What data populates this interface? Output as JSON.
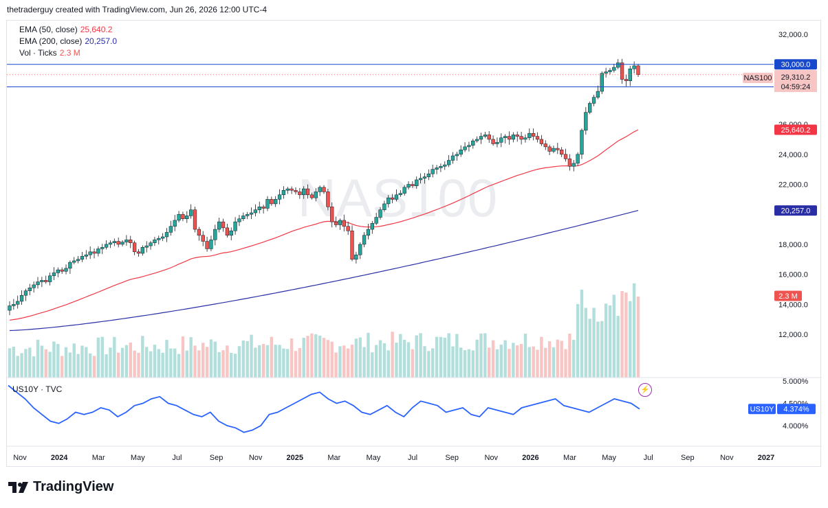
{
  "header": {
    "text": "thetraderguy created with TradingView.com, Jun 26, 2026 12:00 UTC-4"
  },
  "legend": {
    "ema50_label": "EMA (50, close)",
    "ema50_value": "25,640.2",
    "ema200_label": "EMA (200, close)",
    "ema200_value": "20,257.0",
    "vol_label": "Vol · Ticks",
    "vol_value": "2.3 M"
  },
  "watermark": "NAS100",
  "colors": {
    "up": "#26a69a",
    "down": "#ef5350",
    "ema50": "#f23645",
    "ema200": "#2a2ea5",
    "hline": "#1848cc",
    "us10y": "#2962ff",
    "vol_up": "#b2dfdb",
    "vol_down": "#f7c5c3"
  },
  "price_axis": {
    "ticks": [
      "32,000.0",
      "26,000.0",
      "24,000.0",
      "22,000.0",
      "18,000.0",
      "16,000.0",
      "14,000.0",
      "12,000.0"
    ]
  },
  "price_tags": {
    "hline_upper": "30,000.0",
    "hline_lower": "28,500.0",
    "symbol": "NAS100",
    "last_price": "29,310.2",
    "countdown": "04:59:24",
    "ema50": "25,640.2",
    "ema200": "20,257.0",
    "volume": "2.3 M"
  },
  "sub_pane": {
    "label": "US10Y · TVC",
    "ticks": [
      "5.000%",
      "4.500%",
      "4.000%"
    ],
    "tag_symbol": "US10Y",
    "tag_value": "4.374%"
  },
  "time_axis": {
    "labels": [
      "Nov",
      "2024",
      "Mar",
      "May",
      "Jul",
      "Sep",
      "Nov",
      "2025",
      "Mar",
      "May",
      "Jul",
      "Sep",
      "Nov",
      "2026",
      "Mar",
      "May",
      "Jul",
      "Sep",
      "Nov",
      "2027"
    ]
  },
  "footer": {
    "brand": "TradingView"
  },
  "chart_data": {
    "type": "candlestick",
    "timeframe": "weekly",
    "x_range": [
      "2023-10",
      "2027-01"
    ],
    "y_range": [
      11000,
      32500
    ],
    "horizontal_lines": [
      30000,
      28500
    ],
    "last_price": 29310.2,
    "candles_close_approx": [
      13900,
      14000,
      14200,
      14600,
      14900,
      15100,
      15300,
      15500,
      15600,
      15500,
      15900,
      16100,
      16300,
      16200,
      16400,
      16800,
      16900,
      17000,
      17200,
      17300,
      17500,
      17400,
      17700,
      17800,
      18000,
      18100,
      18200,
      18000,
      18150,
      18300,
      18100,
      17500,
      17400,
      17800,
      17900,
      18100,
      18300,
      18400,
      18500,
      18800,
      19200,
      19600,
      20000,
      19700,
      19900,
      20300,
      19000,
      18600,
      18200,
      17700,
      18300,
      19000,
      19500,
      19100,
      18600,
      18900,
      19500,
      19700,
      19900,
      20000,
      20100,
      20300,
      20500,
      20400,
      21000,
      20700,
      21000,
      21300,
      21600,
      21700,
      21600,
      21500,
      21300,
      21700,
      21300,
      21100,
      21500,
      21800,
      21500,
      20500,
      19500,
      19300,
      19600,
      19200,
      18900,
      17000,
      17300,
      18000,
      18600,
      19000,
      19400,
      19800,
      20300,
      20700,
      21100,
      21000,
      21300,
      21400,
      21800,
      22000,
      21900,
      22300,
      22400,
      22500,
      22700,
      23000,
      23100,
      23200,
      23300,
      23600,
      23900,
      24000,
      24300,
      24500,
      24600,
      24900,
      25000,
      25200,
      25300,
      25000,
      24700,
      24800,
      25100,
      25200,
      25000,
      25300,
      25200,
      25000,
      25100,
      25400,
      25200,
      25000,
      24700,
      24500,
      24200,
      24400,
      24300,
      24000,
      23700,
      23200,
      23400,
      24000,
      25600,
      26800,
      27400,
      27800,
      28200,
      29400,
      29500,
      29600,
      29800,
      30100,
      29000,
      28900,
      29700,
      29900,
      29310
    ],
    "ema50_approx": {
      "start": 14000,
      "mid_2025_04": 19500,
      "2026_03": 23800,
      "end": 25640.2
    },
    "ema200_approx": {
      "start": 12200,
      "2025_04": 16200,
      "end": 20257.0
    },
    "volume_last": "2.3 M",
    "sub_series": {
      "name": "US10Y",
      "unit": "%",
      "last": 4.374,
      "values_approx": [
        4.9,
        4.75,
        4.6,
        4.4,
        4.25,
        4.1,
        4.05,
        4.15,
        4.3,
        4.25,
        4.3,
        4.4,
        4.35,
        4.2,
        4.3,
        4.45,
        4.5,
        4.6,
        4.65,
        4.5,
        4.45,
        4.35,
        4.25,
        4.2,
        4.3,
        4.1,
        4.0,
        3.95,
        3.85,
        3.9,
        4.0,
        4.25,
        4.3,
        4.4,
        4.5,
        4.6,
        4.7,
        4.75,
        4.6,
        4.5,
        4.55,
        4.45,
        4.3,
        4.25,
        4.35,
        4.45,
        4.3,
        4.2,
        4.4,
        4.55,
        4.5,
        4.45,
        4.3,
        4.35,
        4.4,
        4.25,
        4.2,
        4.4,
        4.35,
        4.3,
        4.25,
        4.4,
        4.45,
        4.5,
        4.55,
        4.6,
        4.45,
        4.4,
        4.35,
        4.3,
        4.4,
        4.5,
        4.6,
        4.55,
        4.5,
        4.374
      ]
    }
  }
}
